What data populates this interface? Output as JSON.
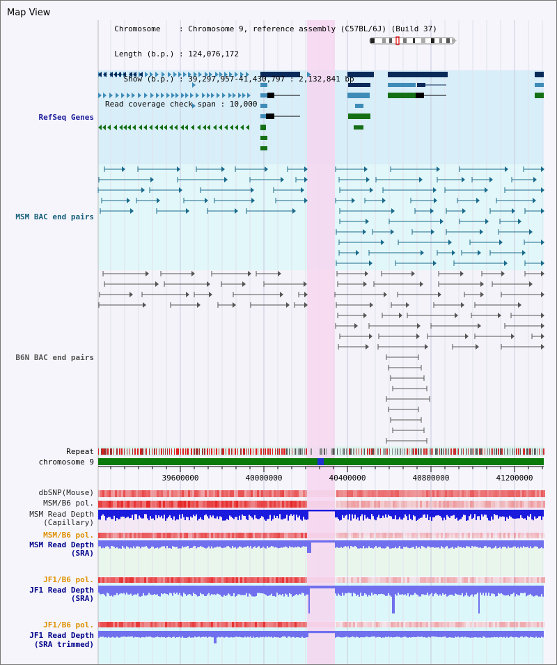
{
  "title": "Map View",
  "info": {
    "chromosome_line": "  Chromosome    : Chromosome 9, reference assembly (C57BL/6J) (Build 37)",
    "length_line": "  Length (b.p.) : 124,076,172",
    "show_line": "    Show (b.p.) : 39,297,957-41,430,797 : 2,132,841 bp",
    "read_line": "Read coverage check span : 10,000"
  },
  "tracks": {
    "refseq": "RefSeq Genes",
    "msm_bac": "MSM BAC end pairs",
    "b6n_bac": "B6N BAC end pairs",
    "repeat": "Repeat",
    "chromosome": "chromosome 9",
    "dbsnp": "dbSNP(Mouse)",
    "msm_pol": "MSM/B6 pol.",
    "msm_depth_cap_1": "MSM Read Depth",
    "msm_depth_cap_2": "(Capillary)",
    "msm_pol_2": "MSM/B6 pol.",
    "msm_depth_sra_1": "MSM Read Depth",
    "msm_depth_sra_2": "(SRA)",
    "jf1_pol": "JF1/B6 pol.",
    "jf1_depth_1": "JF1 Read Depth",
    "jf1_depth_2": "(SRA)",
    "jf1_pol_2": "JF1/B6 pol.",
    "jf1_trim_1": "JF1 Read Depth",
    "jf1_trim_2": "(SRA trimmed)"
  },
  "axis": {
    "ticks": [
      "39600000",
      "40000000",
      "40400000",
      "40800000",
      "41200000"
    ]
  },
  "colors": {
    "refseq_bg": "#d8eef9",
    "msm_bg": "#e1f7f9",
    "gene_dark": "#0a2a5a",
    "gene_mid": "#3f8cb8",
    "gene_green": "#157015",
    "bac_teal": "#1a6a8c",
    "bac_gray": "#555555",
    "highlight": "#f6d6f0",
    "depth_blue": "#1b1bdd",
    "depth_light": "#7070ee",
    "orange_label": "#e09000",
    "navy_label": "#00008b"
  }
}
